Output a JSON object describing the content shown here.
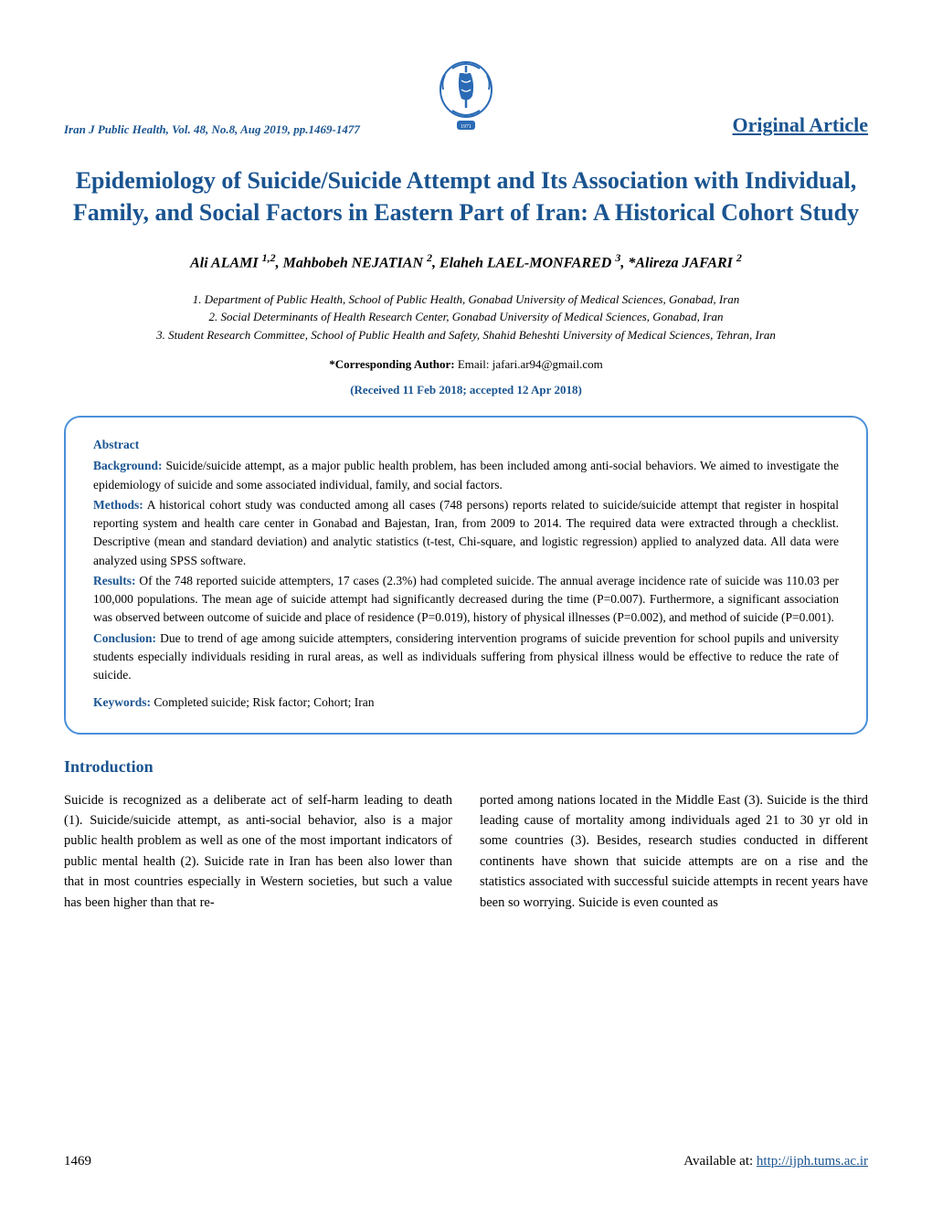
{
  "header": {
    "journal_info": "Iran J Public Health, Vol. 48, No.8, Aug 2019, pp.1469-1477",
    "article_type": "Original Article",
    "logo": {
      "colors": {
        "primary": "#2a6bb5",
        "accent": "#2a6bb5"
      }
    }
  },
  "title": "Epidemiology of Suicide/Suicide Attempt and Its Association with Individual, Family, and Social Factors in Eastern Part of Iran: A Historical Cohort Study",
  "authors_html": "Ali ALAMI <sup>1,2</sup>, Mahbobeh NEJATIAN <sup>2</sup>, Elaheh LAEL-MONFARED <sup>3</sup>, *Alireza JAFARI <sup>2</sup>",
  "affiliations": [
    "1.   Department of Public Health, School of Public Health, Gonabad University of Medical Sciences, Gonabad, Iran",
    "2.   Social Determinants of Health Research Center, Gonabad University of Medical Sciences, Gonabad, Iran",
    "3.   Student Research Committee, School of Public Health and Safety, Shahid Beheshti University of Medical Sciences, Tehran, Iran"
  ],
  "corresponding": {
    "label": "*Corresponding Author:",
    "text": " Email: jafari.ar94@gmail.com"
  },
  "dates": "(Received 11 Feb 2018; accepted 12 Apr 2018)",
  "abstract": {
    "title": "Abstract",
    "background_label": "Background:",
    "background": " Suicide/suicide attempt, as a major public health problem, has been included among anti-social behaviors. We aimed to investigate the epidemiology of suicide and some associated individual, family, and social factors.",
    "methods_label": "Methods:",
    "methods": " A historical cohort study was conducted among all cases (748 persons) reports related to suicide/suicide attempt that register in hospital reporting system and health care center in Gonabad and Bajestan, Iran, from 2009 to 2014. The required data were extracted through a checklist. Descriptive (mean and standard deviation) and analytic statistics (t-test, Chi-square, and logistic regression) applied to analyzed data. All data were analyzed using SPSS software.",
    "results_label": "Results:",
    "results": " Of the 748 reported suicide attempters, 17 cases (2.3%) had completed suicide. The annual average incidence rate of suicide was 110.03 per 100,000 populations. The mean age of suicide attempt had significantly decreased during the time (P=0.007). Furthermore, a significant association was observed between outcome of suicide and place of residence (P=0.019), history of physical illnesses (P=0.002), and method of suicide (P=0.001).",
    "conclusion_label": "Conclusion:",
    "conclusion": " Due to trend of age among suicide attempters, considering intervention programs of suicide prevention for school pupils and university students especially individuals residing in rural areas, as well as individuals suffering from physical illness would be effective to reduce the rate of suicide.",
    "keywords_label": "Keywords:",
    "keywords": " Completed suicide; Risk factor; Cohort; Iran"
  },
  "introduction": {
    "heading": "Introduction",
    "col1": "Suicide is recognized as a deliberate act of self-harm leading to death (1). Suicide/suicide attempt, as anti-social behavior, also is a major public health problem as well as one of the most important indicators of public mental health (2). Suicide rate in Iran has been also lower than that in most countries especially in Western societies, but such a value has been higher than that re-",
    "col2": "ported among nations located in the Middle East (3). Suicide is the third leading cause of mortality among individuals aged 21 to 30 yr old in some countries (3). Besides, research studies conducted in different continents have shown that suicide attempts are on a rise and the statistics associated with successful suicide attempts in recent years have been so worrying. Suicide is even counted as"
  },
  "footer": {
    "page_number": "1469",
    "available_label": "Available at:   ",
    "url": "http://ijph.tums.ac.ir"
  },
  "colors": {
    "brand": "#1a5490",
    "box_border": "#4a90d9",
    "text": "#000000",
    "background": "#ffffff"
  },
  "typography": {
    "title_fontsize": 26,
    "heading_fontsize": 18,
    "body_fontsize": 14.5,
    "abstract_fontsize": 13.5,
    "small_fontsize": 13
  }
}
